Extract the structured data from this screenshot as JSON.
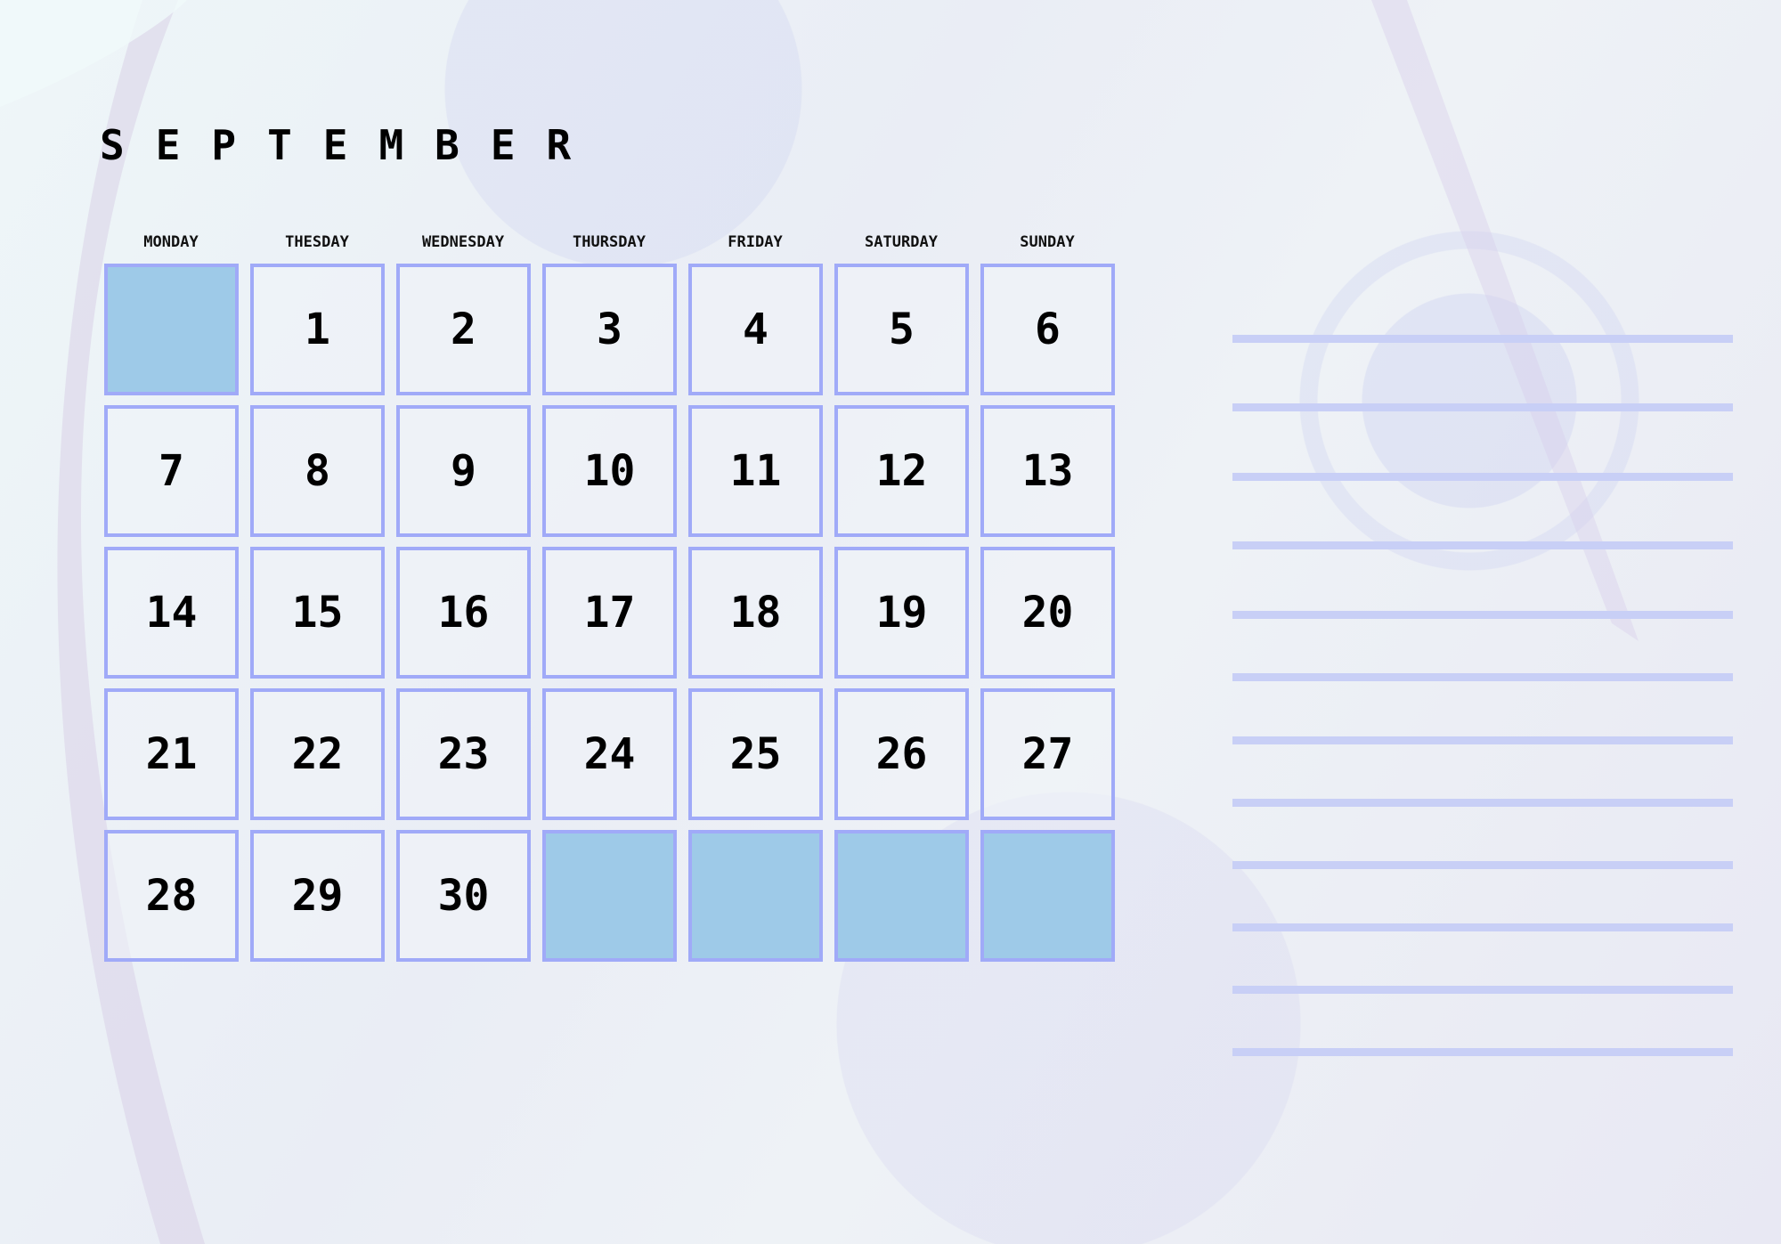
{
  "title": "SEPTEMBER",
  "weekdays": [
    "MONDAY",
    "THESDAY",
    "WEDNESDAY",
    "THURSDAY",
    "FRIDAY",
    "SATURDAY",
    "SUNDAY"
  ],
  "cells": [
    "",
    "1",
    "2",
    "3",
    "4",
    "5",
    "6",
    "7",
    "8",
    "9",
    "10",
    "11",
    "12",
    "13",
    "14",
    "15",
    "16",
    "17",
    "18",
    "19",
    "20",
    "21",
    "22",
    "23",
    "24",
    "25",
    "26",
    "27",
    "28",
    "29",
    "30",
    "",
    "",
    "",
    ""
  ],
  "note_lines": 12,
  "colors": {
    "border": "#a0aaf8",
    "empty_fill": "#9ecae8",
    "note_line": "#c8cff6"
  }
}
